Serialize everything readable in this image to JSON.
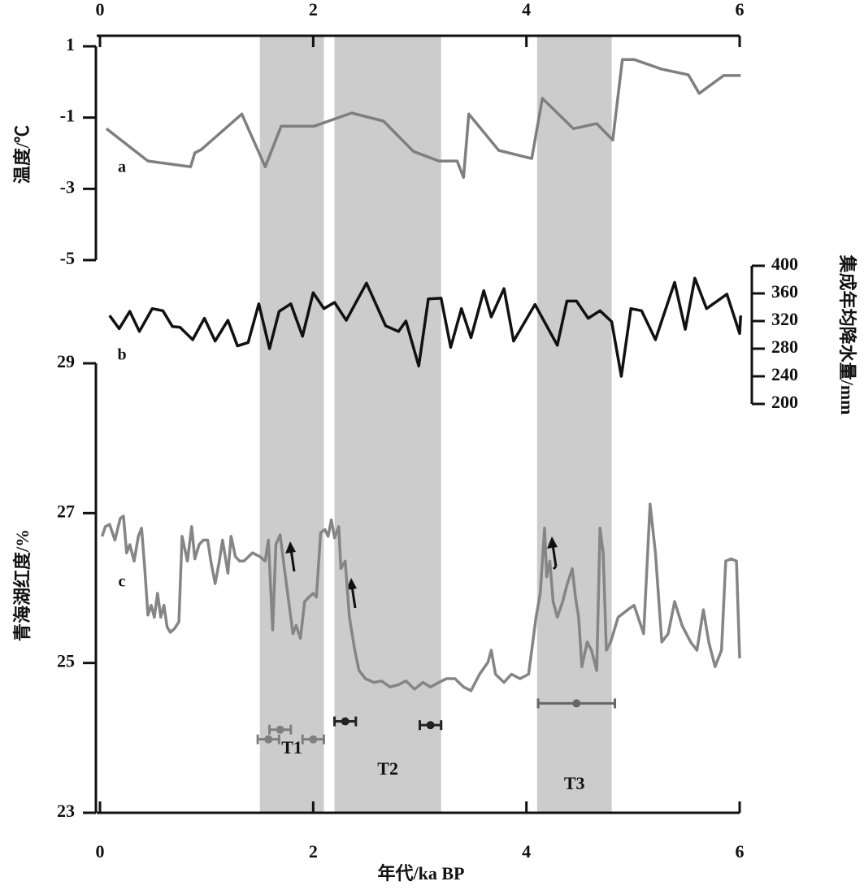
{
  "chart_data": [
    {
      "type": "line",
      "label": "a",
      "ylabel": "温度/℃",
      "color": "#7f7f7f",
      "xaxis_position": "top",
      "yaxis_position": "left",
      "xlim": [
        0,
        6
      ],
      "xticks": [
        0,
        2,
        4,
        6
      ],
      "ylim": [
        -5,
        1
      ],
      "yticks": [
        -5,
        -3,
        -1,
        1
      ],
      "x": [
        0.06,
        0.45,
        0.85,
        0.89,
        0.95,
        1.33,
        1.55,
        1.7,
        2.01,
        2.36,
        2.66,
        2.94,
        3.18,
        3.35,
        3.41,
        3.46,
        3.74,
        4.05,
        4.15,
        4.44,
        4.66,
        4.81,
        4.9,
        5.01,
        5.27,
        5.52,
        5.62,
        5.85,
        6.01
      ],
      "values": [
        -1.31,
        -2.22,
        -2.38,
        -1.99,
        -1.9,
        -0.9,
        -2.38,
        -1.24,
        -1.24,
        -0.87,
        -1.1,
        -1.95,
        -2.22,
        -2.22,
        -2.68,
        -0.9,
        -1.92,
        -2.15,
        -0.46,
        -1.31,
        -1.17,
        -1.63,
        0.63,
        0.63,
        0.36,
        0.2,
        -0.32,
        0.18,
        0.18
      ]
    },
    {
      "type": "line",
      "label": "b",
      "ylabel": "集成年均降水量/mm",
      "color": "#111111",
      "yaxis_position": "right",
      "xlim": [
        0,
        6
      ],
      "ylim": [
        200,
        400
      ],
      "yticks": [
        200,
        240,
        280,
        320,
        360,
        400
      ],
      "x": [
        0.09,
        0.18,
        0.28,
        0.37,
        0.49,
        0.59,
        0.68,
        0.75,
        0.87,
        0.98,
        1.08,
        1.2,
        1.29,
        1.39,
        1.49,
        1.59,
        1.68,
        1.79,
        1.9,
        2.0,
        2.1,
        2.2,
        2.31,
        2.5,
        2.68,
        2.8,
        2.87,
        2.99,
        3.08,
        3.2,
        3.29,
        3.39,
        3.48,
        3.6,
        3.67,
        3.79,
        3.88,
        4.08,
        4.29,
        4.38,
        4.47,
        4.58,
        4.69,
        4.8,
        4.89,
        4.98,
        5.08,
        5.21,
        5.39,
        5.49,
        5.58,
        5.69,
        5.88,
        6.0,
        6.01
      ],
      "values": [
        328,
        309,
        334,
        305,
        338,
        335,
        312,
        311,
        293,
        324,
        291,
        321,
        284,
        289,
        345,
        280,
        334,
        345,
        298,
        361,
        338,
        347,
        321,
        375,
        313,
        305,
        320,
        255,
        352,
        353,
        282,
        338,
        296,
        364,
        326,
        367,
        291,
        344,
        285,
        349,
        349,
        324,
        335,
        319,
        240,
        338,
        335,
        293,
        376,
        308,
        382,
        338,
        359,
        302,
        328
      ]
    },
    {
      "type": "line",
      "label": "c",
      "ylabel": "青海湖红度/%",
      "xlabel": "年代/ka BP",
      "color": "#858585",
      "xaxis_position": "bottom",
      "yaxis_position": "left",
      "xlim": [
        0,
        6
      ],
      "xticks": [
        0,
        2,
        4,
        6
      ],
      "ylim": [
        23,
        29
      ],
      "yticks": [
        23,
        25,
        27,
        29
      ],
      "x": [
        0.02,
        0.05,
        0.09,
        0.14,
        0.19,
        0.22,
        0.25,
        0.28,
        0.32,
        0.36,
        0.39,
        0.42,
        0.45,
        0.48,
        0.51,
        0.54,
        0.57,
        0.6,
        0.63,
        0.66,
        0.7,
        0.74,
        0.77,
        0.82,
        0.86,
        0.89,
        0.93,
        0.97,
        1.01,
        1.04,
        1.08,
        1.12,
        1.15,
        1.2,
        1.23,
        1.27,
        1.31,
        1.35,
        1.43,
        1.5,
        1.55,
        1.58,
        1.62,
        1.65,
        1.69,
        1.73,
        1.77,
        1.81,
        1.84,
        1.88,
        1.92,
        1.96,
        2.0,
        2.03,
        2.07,
        2.11,
        2.14,
        2.17,
        2.2,
        2.24,
        2.26,
        2.3,
        2.34,
        2.39,
        2.43,
        2.49,
        2.57,
        2.64,
        2.72,
        2.8,
        2.87,
        2.95,
        3.03,
        3.1,
        3.18,
        3.25,
        3.33,
        3.41,
        3.48,
        3.56,
        3.64,
        3.67,
        3.71,
        3.79,
        3.86,
        3.94,
        4.02,
        4.05,
        4.09,
        4.13,
        4.17,
        4.19,
        4.22,
        4.25,
        4.29,
        4.34,
        4.38,
        4.43,
        4.46,
        4.49,
        4.52,
        4.57,
        4.61,
        4.66,
        4.69,
        4.72,
        4.75,
        4.79,
        4.86,
        4.95,
        5.01,
        5.1,
        5.16,
        5.21,
        5.27,
        5.33,
        5.39,
        5.46,
        5.54,
        5.6,
        5.66,
        5.71,
        5.77,
        5.83,
        5.87,
        5.92,
        5.97,
        6.0
      ],
      "values": [
        26.69,
        26.82,
        26.85,
        26.64,
        26.93,
        26.96,
        26.47,
        26.58,
        26.36,
        26.69,
        26.8,
        26.26,
        25.64,
        25.77,
        25.61,
        25.93,
        25.61,
        25.77,
        25.48,
        25.41,
        25.46,
        25.55,
        26.69,
        26.36,
        26.82,
        26.39,
        26.58,
        26.64,
        26.64,
        26.36,
        26.06,
        26.36,
        26.64,
        26.2,
        26.69,
        26.42,
        26.36,
        26.36,
        26.47,
        26.42,
        26.36,
        26.64,
        25.44,
        26.58,
        26.71,
        26.26,
        25.82,
        25.39,
        25.5,
        25.33,
        25.82,
        25.88,
        25.93,
        25.88,
        26.74,
        26.78,
        26.69,
        26.91,
        26.67,
        26.82,
        26.26,
        26.36,
        25.61,
        25.17,
        24.9,
        24.79,
        24.74,
        24.76,
        24.68,
        24.71,
        24.76,
        24.65,
        24.74,
        24.68,
        24.74,
        24.79,
        24.79,
        24.68,
        24.63,
        24.85,
        25.01,
        25.17,
        24.85,
        24.74,
        24.85,
        24.79,
        24.85,
        25.17,
        25.61,
        25.93,
        26.8,
        26.15,
        26.36,
        25.82,
        25.61,
        25.82,
        26.04,
        26.26,
        25.88,
        25.61,
        24.95,
        25.28,
        25.17,
        24.9,
        26.8,
        26.47,
        25.17,
        25.28,
        25.61,
        25.71,
        25.77,
        25.39,
        27.12,
        26.47,
        25.28,
        25.39,
        25.82,
        25.5,
        25.28,
        25.17,
        25.71,
        25.28,
        24.95,
        25.17,
        26.36,
        26.39,
        26.36,
        25.06
      ],
      "bands": [
        {
          "name": "T1",
          "range": [
            1.5,
            2.1
          ]
        },
        {
          "name": "T2",
          "range": [
            2.2,
            3.2
          ]
        },
        {
          "name": "T3",
          "range": [
            4.1,
            4.8
          ]
        }
      ],
      "band_color": "#cccccc",
      "age_points": [
        {
          "x": 1.69,
          "y": 24.11,
          "xerr": 0.1,
          "color": "#7f7f7f"
        },
        {
          "x": 1.58,
          "y": 23.98,
          "xerr": 0.1,
          "color": "#7f7f7f"
        },
        {
          "x": 2.0,
          "y": 23.98,
          "xerr": 0.1,
          "color": "#7f7f7f"
        },
        {
          "x": 2.3,
          "y": 24.22,
          "xerr": 0.1,
          "color": "#222222"
        },
        {
          "x": 3.1,
          "y": 24.17,
          "xerr": 0.1,
          "color": "#222222"
        },
        {
          "x": 4.47,
          "y": 24.46,
          "xerr": 0.36,
          "color": "#666666"
        }
      ]
    }
  ]
}
